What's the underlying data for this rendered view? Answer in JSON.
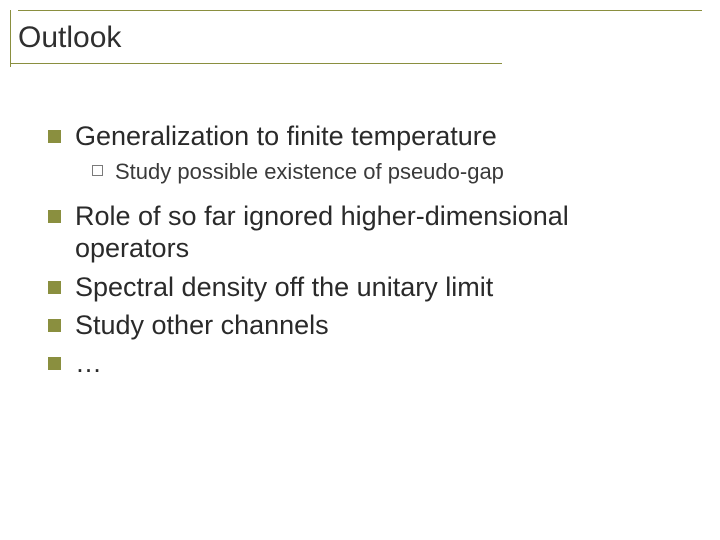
{
  "slide": {
    "title": "Outlook",
    "bullets": [
      {
        "text": "Generalization to finite temperature",
        "sub": [
          {
            "text": "Study possible existence of pseudo-gap"
          }
        ]
      },
      {
        "text": "Role of so far ignored higher-dimensional operators"
      },
      {
        "text": "Spectral density off the unitary limit"
      },
      {
        "text": "Study other channels"
      },
      {
        "text": "…"
      }
    ]
  },
  "style": {
    "accent_color": "#8a8f3f",
    "background_color": "#ffffff",
    "title_fontsize": 30,
    "lvl1_fontsize": 27,
    "lvl2_fontsize": 22,
    "lvl1_bullet_type": "filled-square",
    "lvl2_bullet_type": "open-square",
    "lvl1_bullet_color": "#8a8f3f",
    "lvl2_bullet_color": "#7a7a7a",
    "text_color": "#2a2a2a"
  }
}
